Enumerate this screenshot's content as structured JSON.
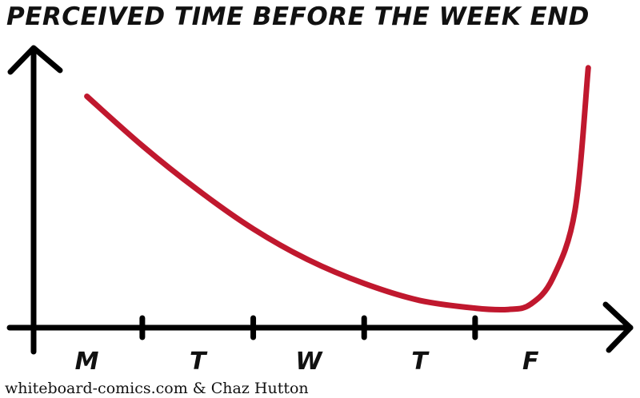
{
  "chart_data": {
    "type": "line",
    "title": "PERCEIVED TIME BEFORE THE WEEK END",
    "xlabel": "",
    "ylabel": "",
    "categories": [
      "M",
      "T",
      "W",
      "T",
      "F"
    ],
    "series": [
      {
        "x": [
          0.0,
          0.5,
          1.0,
          1.5,
          2.0,
          2.5,
          3.0,
          3.5,
          3.8,
          4.0,
          4.2,
          4.4,
          4.52
        ],
        "y": [
          0.89,
          0.7,
          0.53,
          0.38,
          0.26,
          0.17,
          0.105,
          0.075,
          0.07,
          0.09,
          0.19,
          0.45,
          1.0
        ]
      }
    ],
    "xlim": [
      -0.48,
      4.9
    ],
    "ylim": [
      0,
      1.07
    ],
    "grid": false,
    "colors": {
      "line": "#c0182e",
      "axis": "#000000"
    }
  },
  "credit": "whiteboard-comics.com & Chaz Hutton"
}
